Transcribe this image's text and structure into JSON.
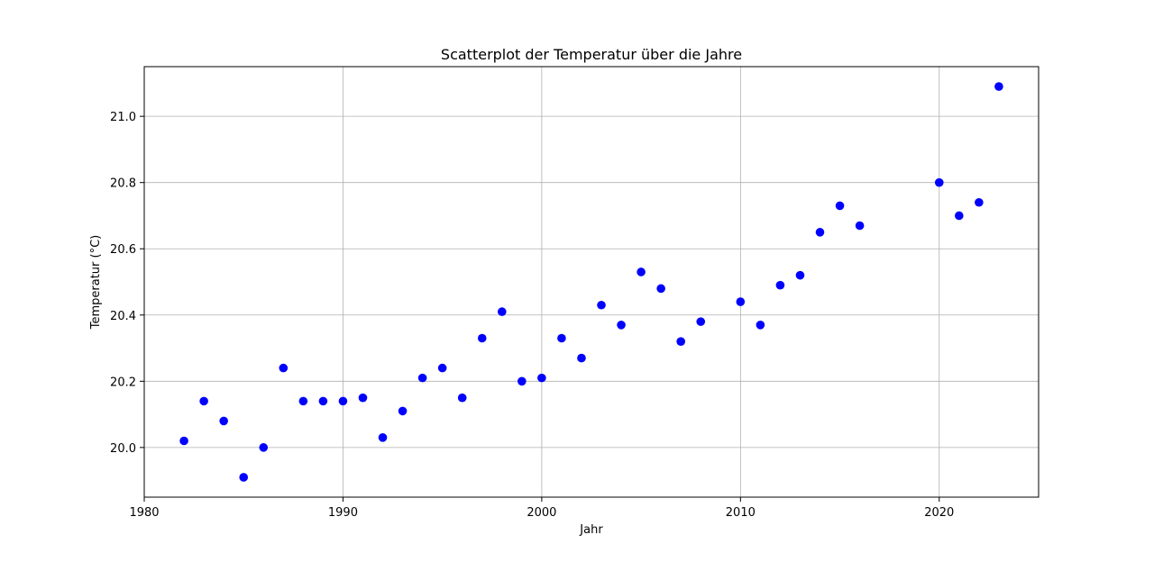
{
  "chart_data": {
    "type": "scatter",
    "title": "Scatterplot der Temperatur über die Jahre",
    "xlabel": "Jahr",
    "ylabel": "Temperatur (°C)",
    "xlim": [
      1980,
      2025
    ],
    "ylim": [
      19.85,
      21.15
    ],
    "x_ticks": [
      1980,
      1990,
      2000,
      2010,
      2020
    ],
    "x_tick_labels": [
      "1980",
      "1990",
      "2000",
      "2010",
      "2020"
    ],
    "y_ticks": [
      20.0,
      20.2,
      20.4,
      20.6,
      20.8,
      21.0
    ],
    "y_tick_labels": [
      "20.0",
      "20.2",
      "20.4",
      "20.6",
      "20.8",
      "21.0"
    ],
    "grid": true,
    "marker_color": "#0000ff",
    "series": [
      {
        "x": [
          1982,
          1983,
          1984,
          1985,
          1986,
          1987,
          1988,
          1989,
          1990,
          1991,
          1992,
          1993,
          1994,
          1995,
          1996,
          1997,
          1998,
          1999,
          2000,
          2001,
          2002,
          2003,
          2004,
          2005,
          2006,
          2007,
          2008,
          2010,
          2011,
          2012,
          2013,
          2014,
          2015,
          2016,
          2020,
          2021,
          2022,
          2023
        ],
        "y": [
          20.02,
          20.14,
          20.08,
          19.91,
          20.0,
          20.24,
          20.14,
          20.14,
          20.14,
          20.15,
          20.03,
          20.11,
          20.21,
          20.24,
          20.15,
          20.33,
          20.41,
          20.2,
          20.21,
          20.33,
          20.27,
          20.43,
          20.37,
          20.53,
          20.48,
          20.32,
          20.38,
          20.44,
          20.37,
          20.49,
          20.52,
          20.65,
          20.73,
          20.67,
          20.8,
          20.7,
          20.74,
          21.09
        ]
      }
    ]
  }
}
